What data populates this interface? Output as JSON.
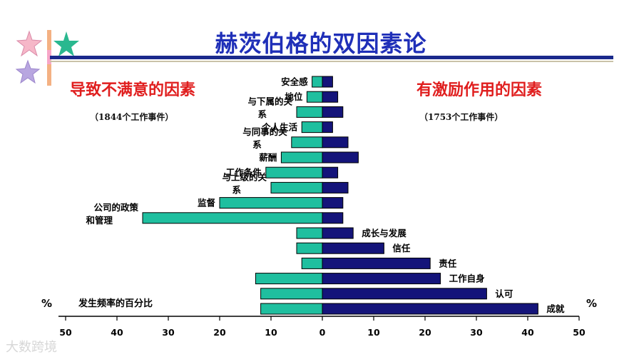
{
  "title": "赫茨伯格的双因素论",
  "left_heading": "导致不满意的因素",
  "right_heading": "有激励作用的因素",
  "left_note": "（1844个工作事件）",
  "right_note": "（1753个工作事件）",
  "percent_symbol": "%",
  "watermark": "大数跨境",
  "colors": {
    "left_bar": "#1fbf9f",
    "right_bar": "#14147a",
    "title": "#1f2fb8",
    "heading": "#e01e1e"
  },
  "chart_data": {
    "type": "bar",
    "orientation": "horizontal-diverging",
    "xlabel": "发生频率的百分比",
    "xlim": [
      -50,
      50
    ],
    "xticks": [
      "50",
      "40",
      "30",
      "20",
      "10",
      "0",
      "10",
      "20",
      "30",
      "40",
      "50"
    ],
    "categories": [
      "安全感",
      "地位",
      "与下属的关系",
      "个人生活",
      "与同事的关系",
      "薪酬",
      "工作条件",
      "与上级的关系",
      "监督",
      "公司的政策和管理",
      "成长与发展",
      "信任",
      "责任",
      "工作自身",
      "认可",
      "成就"
    ],
    "category_label_side": [
      "left",
      "left",
      "left",
      "left",
      "left",
      "left",
      "left",
      "left",
      "left",
      "left",
      "right",
      "right",
      "right",
      "right",
      "right",
      "right"
    ],
    "series": [
      {
        "name": "导致不满意的因素",
        "values": [
          2,
          3,
          5,
          4,
          6,
          8,
          11,
          10,
          20,
          35,
          5,
          5,
          4,
          13,
          12,
          12
        ]
      },
      {
        "name": "有激励作用的因素",
        "values": [
          2,
          3,
          4,
          2,
          5,
          7,
          3,
          5,
          4,
          4,
          6,
          12,
          21,
          23,
          32,
          42
        ]
      }
    ]
  }
}
